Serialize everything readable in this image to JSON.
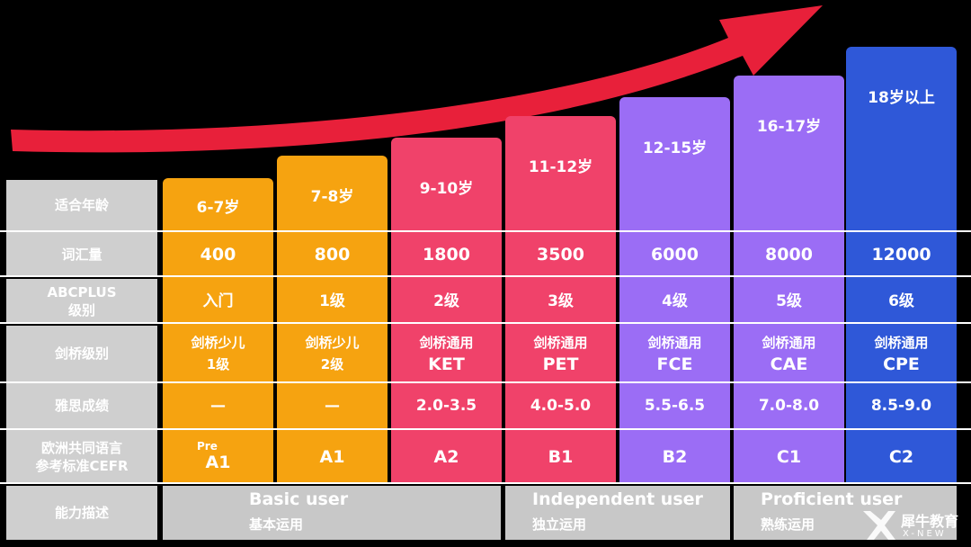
{
  "row_labels": [
    {
      "lines": [
        "适合年龄"
      ]
    },
    {
      "lines": [
        "词汇量"
      ]
    },
    {
      "lines": [
        "ABCPLUS",
        "级别"
      ]
    },
    {
      "lines": [
        "剑桥级别"
      ]
    },
    {
      "lines": [
        "雅思成绩"
      ]
    },
    {
      "lines": [
        "欧洲共同语言",
        "参考标准CEFR"
      ]
    },
    {
      "lines": [
        "能力描述"
      ]
    }
  ],
  "levels": [
    {
      "age": "6-7岁",
      "vocab": "400",
      "abcplus": "入门",
      "cambridge": [
        "剑桥少儿",
        "1级"
      ],
      "ielts": "—",
      "cefr_pre": "Pre",
      "cefr": "A1",
      "color": "#f6a310"
    },
    {
      "age": "7-8岁",
      "vocab": "800",
      "abcplus": "1级",
      "cambridge": [
        "剑桥少儿",
        "2级"
      ],
      "ielts": "—",
      "cefr_pre": "",
      "cefr": "A1",
      "color": "#f6a310"
    },
    {
      "age": "9-10岁",
      "vocab": "1800",
      "abcplus": "2级",
      "cambridge": [
        "剑桥通用",
        "KET"
      ],
      "ielts": "2.0-3.5",
      "cefr_pre": "",
      "cefr": "A2",
      "color": "#f0426a"
    },
    {
      "age": "11-12岁",
      "vocab": "3500",
      "abcplus": "3级",
      "cambridge": [
        "剑桥通用",
        "PET"
      ],
      "ielts": "4.0-5.0",
      "cefr_pre": "",
      "cefr": "B1",
      "color": "#f0426a"
    },
    {
      "age": "12-15岁",
      "vocab": "6000",
      "abcplus": "4级",
      "cambridge": [
        "剑桥通用",
        "FCE"
      ],
      "ielts": "5.5-6.5",
      "cefr_pre": "",
      "cefr": "B2",
      "color": "#9b6df5"
    },
    {
      "age": "16-17岁",
      "vocab": "8000",
      "abcplus": "5级",
      "cambridge": [
        "剑桥通用",
        "CAE"
      ],
      "ielts": "7.0-8.0",
      "cefr_pre": "",
      "cefr": "C1",
      "color": "#9b6df5"
    },
    {
      "age": "18岁以上",
      "vocab": "12000",
      "abcplus": "6级",
      "cambridge": [
        "剑桥通用",
        "CPE"
      ],
      "ielts": "8.5-9.0",
      "cefr_pre": "",
      "cefr": "C2",
      "color": "#2f58d8"
    }
  ],
  "ability": [
    {
      "en": "Basic user",
      "zh": "基本运用"
    },
    {
      "en": "Independent user",
      "zh": "独立运用"
    },
    {
      "en": "Proficient user",
      "zh": "熟练运用"
    }
  ],
  "colors": {
    "arrow": "#e8203a",
    "label_bg": "#cfcfcf",
    "ability_bg": "#c8c8c8"
  },
  "logo": {
    "name": "犀牛教育",
    "sub": "X-NEW",
    "icon": "rhino-logo-icon"
  }
}
